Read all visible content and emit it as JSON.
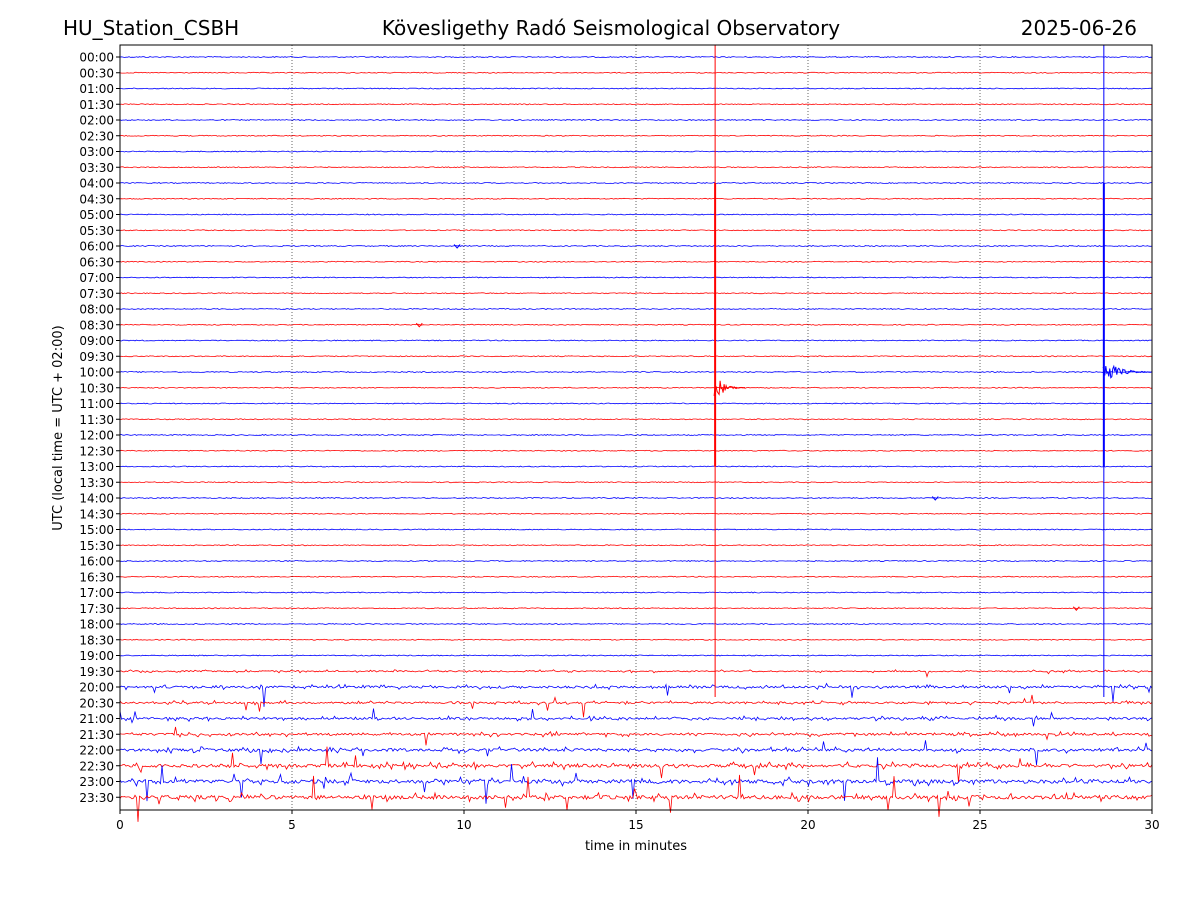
{
  "header": {
    "station": "HU_Station_CSBH",
    "observatory": "Kövesligethy Radó Seismological Observatory",
    "date": "2025-06-26"
  },
  "chart_data": {
    "type": "line",
    "title": "Kövesligethy Radó Seismological Observatory",
    "xlabel": "time in minutes",
    "ylabel": "UTC (local time = UTC + 02:00)",
    "xlim": [
      0,
      30
    ],
    "xticks": [
      0,
      5,
      10,
      15,
      20,
      25,
      30
    ],
    "grid": "vertical dotted lines at each x tick",
    "row_times": [
      "00:00",
      "00:30",
      "01:00",
      "01:30",
      "02:00",
      "02:30",
      "03:00",
      "03:30",
      "04:00",
      "04:30",
      "05:00",
      "05:30",
      "06:00",
      "06:30",
      "07:00",
      "07:30",
      "08:00",
      "08:30",
      "09:00",
      "09:30",
      "10:00",
      "10:30",
      "11:00",
      "11:30",
      "12:00",
      "12:30",
      "13:00",
      "13:30",
      "14:00",
      "14:30",
      "15:00",
      "15:30",
      "16:00",
      "16:30",
      "17:00",
      "17:30",
      "18:00",
      "18:30",
      "19:00",
      "19:30",
      "20:00",
      "20:30",
      "21:00",
      "21:30",
      "22:00",
      "22:30",
      "23:00",
      "23:30"
    ],
    "series_colors": [
      "#0000ff",
      "#ff0000"
    ],
    "events": [
      {
        "row": "10:30",
        "minute": 17.3,
        "color": "#ff0000",
        "rows_up": 13,
        "rows_down": 5,
        "coda_minutes": 0.9,
        "full_span": true
      },
      {
        "row": "10:00",
        "minute": 28.6,
        "color": "#0000ff",
        "rows_up": 12,
        "rows_down": 6,
        "coda_minutes": 1.4,
        "full_span": true
      }
    ],
    "minor_blips": [
      {
        "row": "06:00",
        "minute": 9.8
      },
      {
        "row": "08:30",
        "minute": 8.7
      },
      {
        "row": "14:00",
        "minute": 23.7
      },
      {
        "row": "17:30",
        "minute": 27.8
      }
    ],
    "noise_level_by_row": {
      "19:30": 0.35,
      "20:00": 0.6,
      "20:30": 0.5,
      "21:00": 0.55,
      "21:30": 0.6,
      "22:00": 0.75,
      "22:30": 0.85,
      "23:00": 1.0,
      "23:30": 1.0
    }
  }
}
